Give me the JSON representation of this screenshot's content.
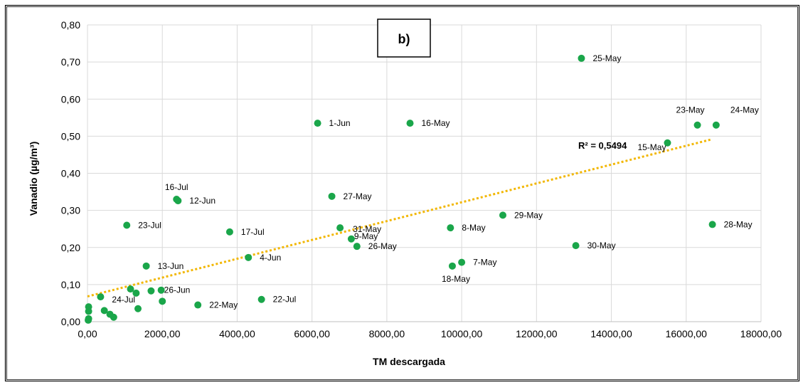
{
  "chart_data": {
    "type": "scatter",
    "panel_label": "b)",
    "xlabel": "TM descargada",
    "ylabel": "Vanadio (µg/m³)",
    "xlim": [
      0,
      18000
    ],
    "ylim": [
      0,
      0.8
    ],
    "x_ticks": [
      0,
      2000,
      4000,
      6000,
      8000,
      10000,
      12000,
      14000,
      16000,
      18000
    ],
    "x_tick_labels": [
      "0,00",
      "2000,00",
      "4000,00",
      "6000,00",
      "8000,00",
      "10000,00",
      "12000,00",
      "14000,00",
      "16000,00",
      "18000,00"
    ],
    "y_ticks": [
      0,
      0.1,
      0.2,
      0.3,
      0.4,
      0.5,
      0.6,
      0.7,
      0.8
    ],
    "y_tick_labels": [
      "0,00",
      "0,10",
      "0,20",
      "0,30",
      "0,40",
      "0,50",
      "0,60",
      "0,70",
      "0,80"
    ],
    "grid": true,
    "marker_color": "#1aa64a",
    "trendline": {
      "color": "#f2b705",
      "x": [
        0,
        16700
      ],
      "y": [
        0.068,
        0.492
      ],
      "r2_label": "R² = 0,5494"
    },
    "points": [
      {
        "x": 13200,
        "y": 0.71,
        "label": "25-May"
      },
      {
        "x": 6150,
        "y": 0.535,
        "label": "1-Jun"
      },
      {
        "x": 8620,
        "y": 0.535,
        "label": "16-May"
      },
      {
        "x": 16300,
        "y": 0.53,
        "label": "23-May"
      },
      {
        "x": 16800,
        "y": 0.53,
        "label": "24-May"
      },
      {
        "x": 15500,
        "y": 0.482,
        "label": "15-May"
      },
      {
        "x": 6530,
        "y": 0.338,
        "label": "27-May"
      },
      {
        "x": 2380,
        "y": 0.33,
        "label": "16-Jul"
      },
      {
        "x": 2420,
        "y": 0.326,
        "label": "12-Jun"
      },
      {
        "x": 11100,
        "y": 0.287,
        "label": "29-May"
      },
      {
        "x": 16700,
        "y": 0.262,
        "label": "28-May"
      },
      {
        "x": 1050,
        "y": 0.26,
        "label": "23-Jul"
      },
      {
        "x": 6750,
        "y": 0.253,
        "label": "31-May"
      },
      {
        "x": 9700,
        "y": 0.253,
        "label": "8-May"
      },
      {
        "x": 3800,
        "y": 0.242,
        "label": "17-Jul"
      },
      {
        "x": 7050,
        "y": 0.223,
        "label": "9-May"
      },
      {
        "x": 7200,
        "y": 0.203,
        "label": "26-May"
      },
      {
        "x": 13050,
        "y": 0.205,
        "label": "30-May"
      },
      {
        "x": 4300,
        "y": 0.173,
        "label": "4-Jun"
      },
      {
        "x": 10000,
        "y": 0.16,
        "label": "7-May"
      },
      {
        "x": 9750,
        "y": 0.15,
        "label": "18-May"
      },
      {
        "x": 1570,
        "y": 0.15,
        "label": "13-Jun"
      },
      {
        "x": 1970,
        "y": 0.085,
        "label": "26-Jun"
      },
      {
        "x": 350,
        "y": 0.067,
        "label": "24-Jul"
      },
      {
        "x": 2950,
        "y": 0.045,
        "label": "22-May"
      },
      {
        "x": 4650,
        "y": 0.06,
        "label": "22-Jul"
      },
      {
        "x": 1150,
        "y": 0.088,
        "label": ""
      },
      {
        "x": 1300,
        "y": 0.077,
        "label": ""
      },
      {
        "x": 1700,
        "y": 0.083,
        "label": ""
      },
      {
        "x": 2000,
        "y": 0.055,
        "label": ""
      },
      {
        "x": 1350,
        "y": 0.035,
        "label": ""
      },
      {
        "x": 450,
        "y": 0.03,
        "label": ""
      },
      {
        "x": 600,
        "y": 0.02,
        "label": ""
      },
      {
        "x": 700,
        "y": 0.012,
        "label": ""
      },
      {
        "x": 30,
        "y": 0.04,
        "label": ""
      },
      {
        "x": 30,
        "y": 0.028,
        "label": ""
      },
      {
        "x": 30,
        "y": 0.008,
        "label": ""
      },
      {
        "x": 20,
        "y": 0.004,
        "label": ""
      }
    ]
  }
}
